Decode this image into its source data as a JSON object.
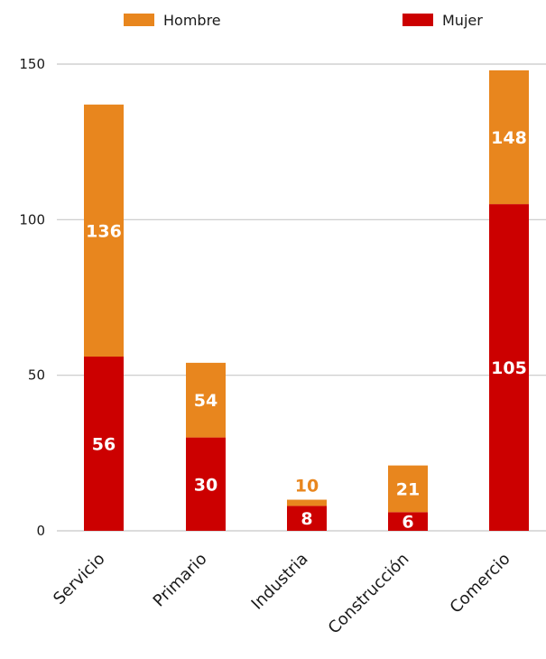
{
  "chart_data": {
    "type": "bar",
    "stacked": true,
    "categories": [
      "Servicio",
      "Primario",
      "Industria",
      "Construcción",
      "Comercio"
    ],
    "series": [
      {
        "name": "Mujer",
        "values": [
          56,
          30,
          8,
          6,
          105
        ],
        "color": "#cc0000"
      },
      {
        "name": "Hombre",
        "values": [
          81,
          24,
          2,
          15,
          43
        ],
        "color": "#e8861e"
      }
    ],
    "data_labels": {
      "Mujer": [
        "56",
        "30",
        "8",
        "6",
        "105"
      ],
      "Hombre": [
        "136",
        "54",
        "10",
        "21",
        "148"
      ]
    },
    "legend_order": [
      "Hombre",
      "Mujer"
    ],
    "yticks": [
      "0",
      "50",
      "100",
      "150"
    ],
    "ylim": [
      0,
      150
    ],
    "grid": true,
    "legend_position": "top"
  }
}
